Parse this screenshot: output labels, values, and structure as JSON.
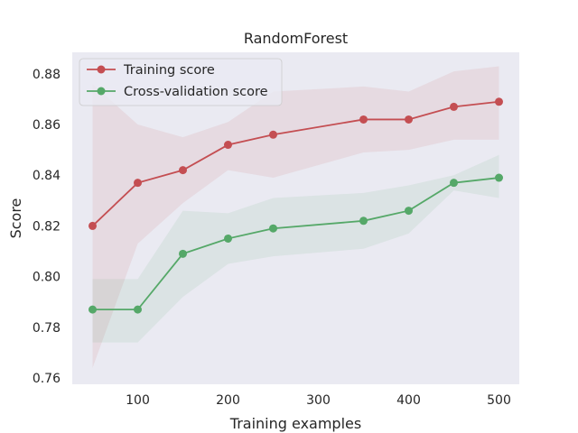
{
  "chart_data": {
    "type": "line",
    "title": "RandomForest",
    "xlabel": "Training examples",
    "ylabel": "Score",
    "xlim": [
      27.5,
      522.5
    ],
    "ylim": [
      0.7575,
      0.8885
    ],
    "xticks": [
      100,
      200,
      300,
      400,
      500
    ],
    "yticks": [
      0.76,
      0.78,
      0.8,
      0.82,
      0.84,
      0.86,
      0.88
    ],
    "ytick_labels": [
      "0.76",
      "0.78",
      "0.80",
      "0.82",
      "0.84",
      "0.86",
      "0.88"
    ],
    "grid": false,
    "background": "#eaeaf2",
    "legend_position": "top-left",
    "x": [
      50,
      100,
      150,
      200,
      250,
      350,
      400,
      450,
      500
    ],
    "series": [
      {
        "name": "Training score",
        "color": "#c44e52",
        "values": [
          0.82,
          0.837,
          0.842,
          0.852,
          0.856,
          0.862,
          0.862,
          0.867,
          0.869
        ],
        "lower": [
          0.764,
          0.813,
          0.829,
          0.842,
          0.839,
          0.849,
          0.85,
          0.854,
          0.854
        ],
        "upper": [
          0.876,
          0.86,
          0.855,
          0.861,
          0.873,
          0.875,
          0.873,
          0.881,
          0.883
        ]
      },
      {
        "name": "Cross-validation score",
        "color": "#55a868",
        "values": [
          0.787,
          0.787,
          0.809,
          0.815,
          0.819,
          0.822,
          0.826,
          0.837,
          0.839
        ],
        "lower": [
          0.774,
          0.774,
          0.792,
          0.805,
          0.808,
          0.811,
          0.817,
          0.834,
          0.831
        ],
        "upper": [
          0.799,
          0.799,
          0.826,
          0.825,
          0.831,
          0.833,
          0.836,
          0.84,
          0.848
        ]
      }
    ]
  }
}
